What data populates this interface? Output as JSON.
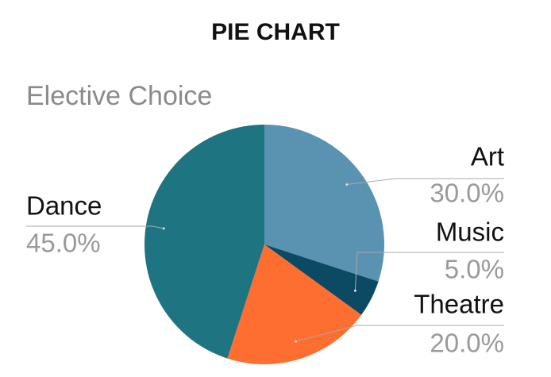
{
  "chart_data": {
    "type": "pie",
    "title": "PIE CHART",
    "subtitle": "Elective Choice",
    "categories": [
      "Art",
      "Music",
      "Theatre",
      "Dance"
    ],
    "values": [
      30,
      5,
      20,
      45
    ],
    "value_labels": [
      "30.0%",
      "5.0%",
      "20.0%",
      "45.0%"
    ],
    "colors": [
      "#5a93b1",
      "#0c4a63",
      "#fd6e30",
      "#1e7481"
    ]
  }
}
